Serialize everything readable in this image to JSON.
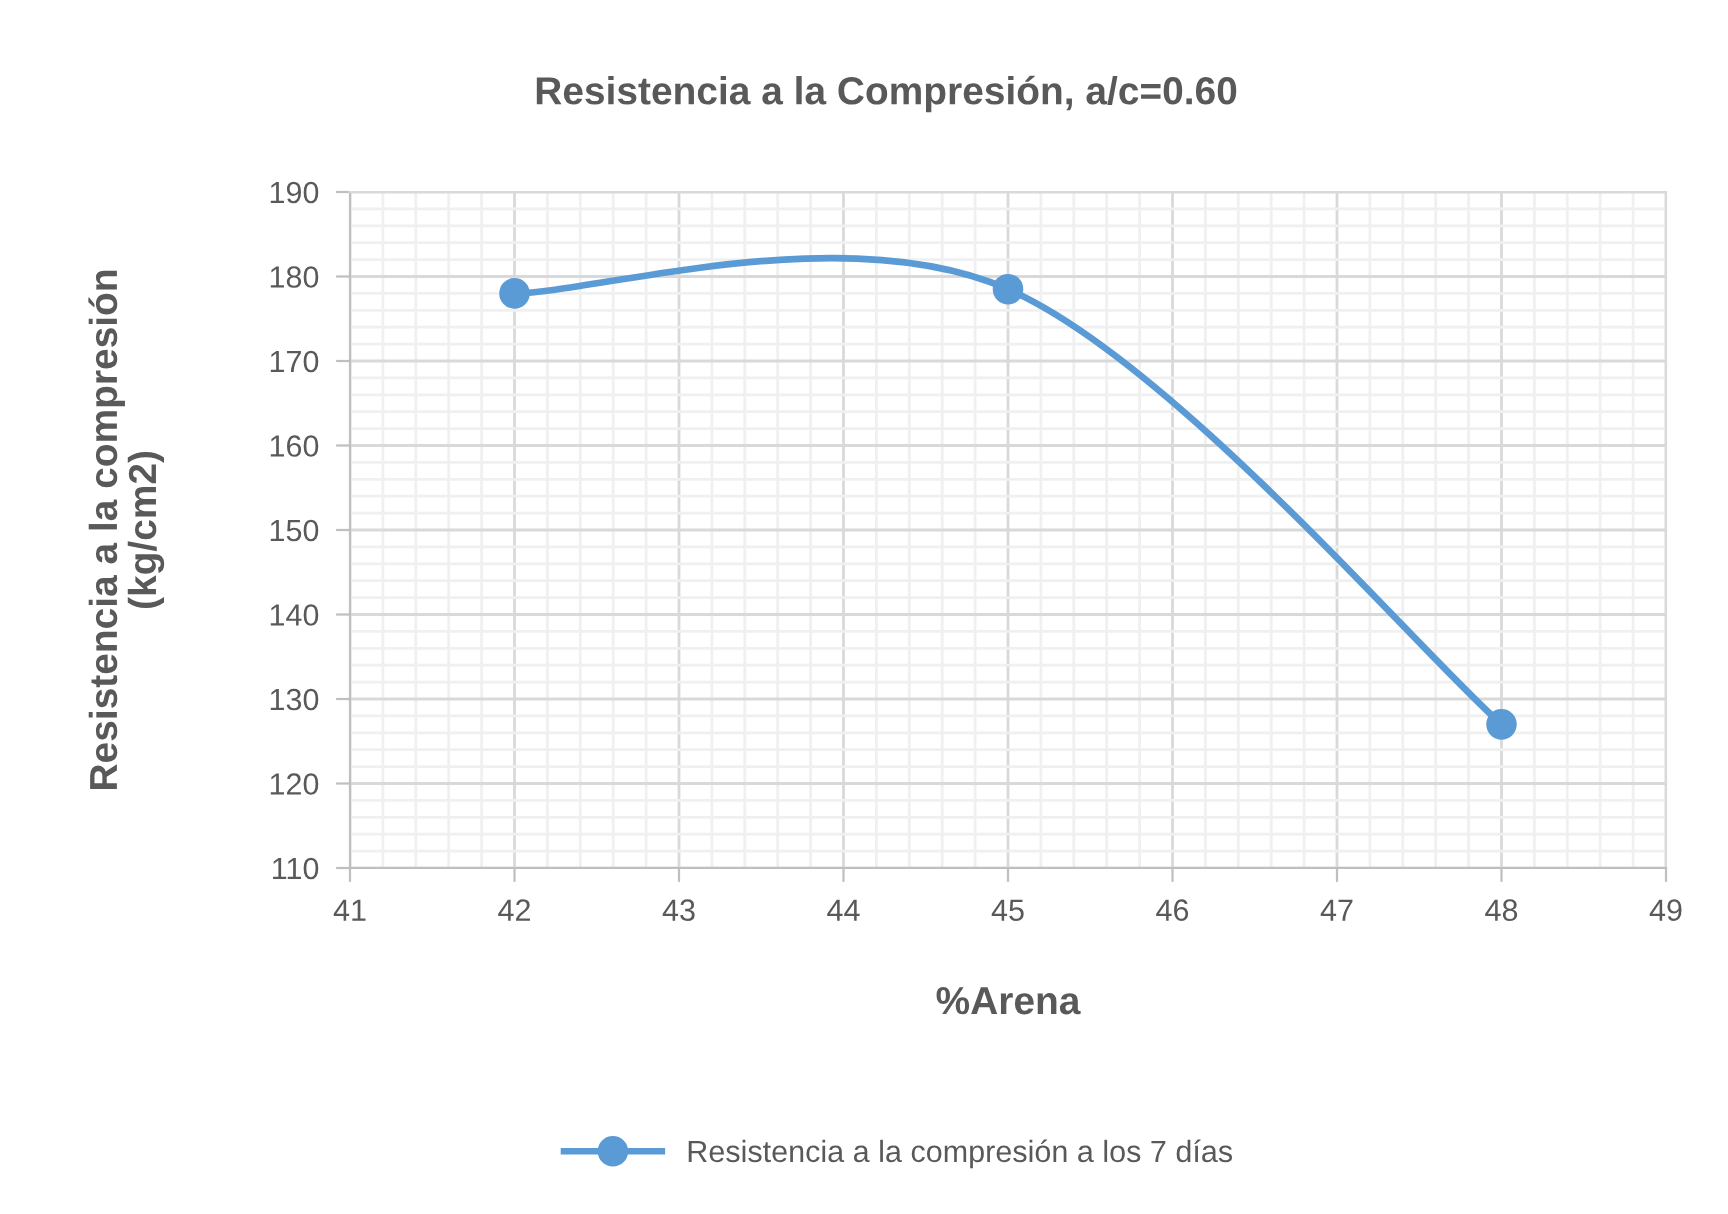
{
  "chart_data": {
    "type": "line",
    "title": "Resistencia a la Compresión, a/c=0.60",
    "xlabel": "%Arena",
    "ylabel": "Resistencia a la compresión\n(kg/cm2)",
    "x": [
      42,
      45,
      48
    ],
    "series": [
      {
        "name": "Resistencia a la compresión a los 7 días",
        "color": "#5b9bd5",
        "values": [
          178,
          178.5,
          127
        ]
      }
    ],
    "xlim": [
      41,
      49
    ],
    "ylim": [
      110,
      190
    ],
    "xticks": [
      41,
      42,
      43,
      44,
      45,
      46,
      47,
      48,
      49
    ],
    "yticks": [
      110,
      120,
      130,
      140,
      150,
      160,
      170,
      180,
      190
    ],
    "grid": true,
    "legend": "bottom",
    "marker": "circle",
    "line_style": "solid"
  }
}
